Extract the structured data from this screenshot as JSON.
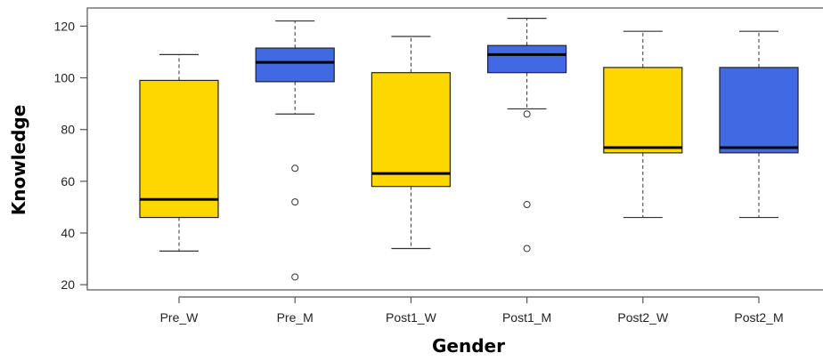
{
  "chart_data": {
    "type": "boxplot",
    "title": "",
    "xlabel": "Gender",
    "ylabel": "Knowledge",
    "ylim": [
      18,
      127
    ],
    "yticks": [
      20,
      40,
      60,
      80,
      100,
      120
    ],
    "grid": false,
    "legend": "none",
    "categories": [
      "Pre_W",
      "Pre_M",
      "Post1_W",
      "Post1_M",
      "Post2_W",
      "Post2_M"
    ],
    "colors": [
      "#ffd700",
      "#4169e1",
      "#ffd700",
      "#4169e1",
      "#ffd700",
      "#4169e1"
    ],
    "boxes": [
      {
        "category": "Pre_W",
        "whisker_low": 33,
        "q1": 46,
        "median": 53,
        "q3": 99,
        "whisker_high": 109,
        "outliers": []
      },
      {
        "category": "Pre_M",
        "whisker_low": 86,
        "q1": 98.5,
        "median": 106,
        "q3": 111.5,
        "whisker_high": 122,
        "outliers": [
          65,
          52,
          23
        ]
      },
      {
        "category": "Post1_W",
        "whisker_low": 34,
        "q1": 58,
        "median": 63,
        "q3": 102,
        "whisker_high": 116,
        "outliers": []
      },
      {
        "category": "Post1_M",
        "whisker_low": 88,
        "q1": 102,
        "median": 109,
        "q3": 112.5,
        "whisker_high": 123,
        "outliers": [
          86,
          51,
          34
        ]
      },
      {
        "category": "Post2_W",
        "whisker_low": 46,
        "q1": 71,
        "median": 73,
        "q3": 104,
        "whisker_high": 118,
        "outliers": []
      },
      {
        "category": "Post2_M",
        "whisker_low": 46,
        "q1": 71,
        "median": 73,
        "q3": 104,
        "whisker_high": 118,
        "outliers": []
      }
    ]
  }
}
